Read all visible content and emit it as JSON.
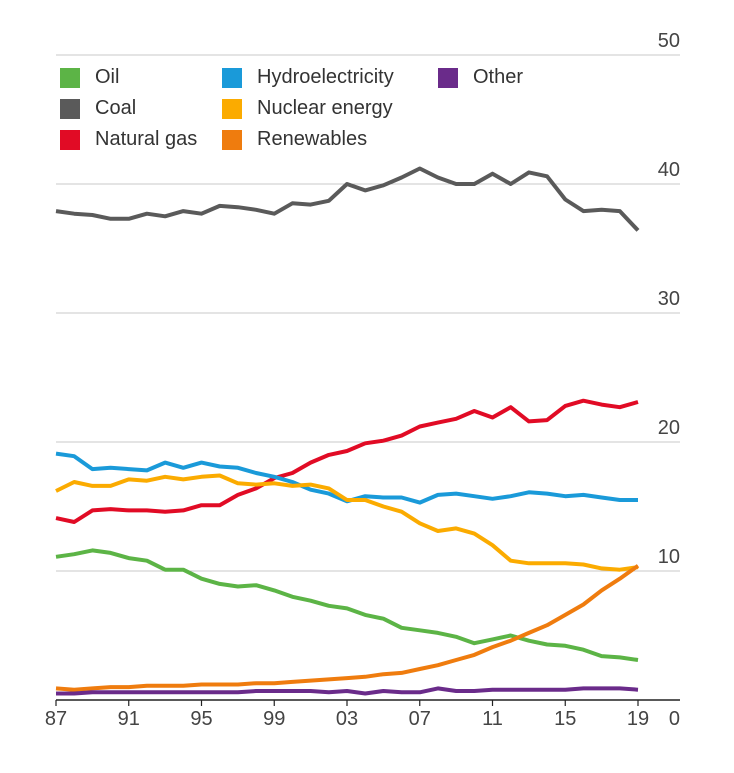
{
  "chart_data": {
    "type": "line",
    "title": "",
    "xlabel": "",
    "ylabel": "",
    "ylim": [
      0,
      50
    ],
    "y_ticks": [
      "0",
      "10",
      "20",
      "30",
      "40",
      "50"
    ],
    "x_ticks": [
      "87",
      "91",
      "95",
      "99",
      "03",
      "07",
      "11",
      "15",
      "19"
    ],
    "grid": "horizontal",
    "legend_position": "top-left",
    "x": [
      1987,
      1988,
      1989,
      1990,
      1991,
      1992,
      1993,
      1994,
      1995,
      1996,
      1997,
      1998,
      1999,
      2000,
      2001,
      2002,
      2003,
      2004,
      2005,
      2006,
      2007,
      2008,
      2009,
      2010,
      2011,
      2012,
      2013,
      2014,
      2015,
      2016,
      2017,
      2018,
      2019
    ],
    "series": [
      {
        "name": "Oil",
        "color": "#5cb446",
        "values": [
          11.1,
          11.3,
          11.6,
          11.4,
          11.0,
          10.8,
          10.1,
          10.1,
          9.4,
          9.0,
          8.8,
          8.9,
          8.5,
          8.0,
          7.7,
          7.3,
          7.1,
          6.6,
          6.3,
          5.6,
          5.4,
          5.2,
          4.9,
          4.4,
          4.7,
          5.0,
          4.6,
          4.3,
          4.2,
          3.9,
          3.4,
          3.3,
          3.1
        ]
      },
      {
        "name": "Coal",
        "color": "#5a5a5a",
        "values": [
          37.9,
          37.7,
          37.6,
          37.3,
          37.3,
          37.7,
          37.5,
          37.9,
          37.7,
          38.3,
          38.2,
          38.0,
          37.7,
          38.5,
          38.4,
          38.7,
          40.0,
          39.5,
          39.9,
          40.5,
          41.2,
          40.5,
          40.0,
          40.0,
          40.8,
          40.0,
          40.9,
          40.6,
          38.8,
          37.9,
          38.0,
          37.9,
          36.4
        ]
      },
      {
        "name": "Natural gas",
        "color": "#e10b25",
        "values": [
          14.1,
          13.8,
          14.7,
          14.8,
          14.7,
          14.7,
          14.6,
          14.7,
          15.1,
          15.1,
          15.9,
          16.4,
          17.2,
          17.6,
          18.4,
          19.0,
          19.3,
          19.9,
          20.1,
          20.5,
          21.2,
          21.5,
          21.8,
          22.4,
          21.9,
          22.7,
          21.6,
          21.7,
          22.8,
          23.2,
          22.9,
          22.7,
          23.1
        ]
      },
      {
        "name": "Hydroelectricity",
        "color": "#1a9ad9",
        "values": [
          19.1,
          18.9,
          17.9,
          18.0,
          17.9,
          17.8,
          18.4,
          18.0,
          18.4,
          18.1,
          18.0,
          17.6,
          17.3,
          16.9,
          16.3,
          16.0,
          15.4,
          15.8,
          15.7,
          15.7,
          15.3,
          15.9,
          16.0,
          15.8,
          15.6,
          15.8,
          16.1,
          16.0,
          15.8,
          15.9,
          15.7,
          15.5,
          15.5
        ]
      },
      {
        "name": "Nuclear energy",
        "color": "#fbab00",
        "values": [
          16.2,
          16.9,
          16.6,
          16.6,
          17.1,
          17.0,
          17.3,
          17.1,
          17.3,
          17.4,
          16.8,
          16.7,
          16.8,
          16.6,
          16.7,
          16.4,
          15.5,
          15.5,
          15.0,
          14.6,
          13.7,
          13.1,
          13.3,
          12.9,
          12.0,
          10.8,
          10.6,
          10.6,
          10.6,
          10.5,
          10.2,
          10.1,
          10.3
        ]
      },
      {
        "name": "Renewables",
        "color": "#ef7c0e",
        "values": [
          0.9,
          0.8,
          0.9,
          1.0,
          1.0,
          1.1,
          1.1,
          1.1,
          1.2,
          1.2,
          1.2,
          1.3,
          1.3,
          1.4,
          1.5,
          1.6,
          1.7,
          1.8,
          2.0,
          2.1,
          2.4,
          2.7,
          3.1,
          3.5,
          4.1,
          4.6,
          5.2,
          5.8,
          6.6,
          7.4,
          8.5,
          9.4,
          10.4
        ]
      },
      {
        "name": "Other",
        "color": "#6a2b8a",
        "values": [
          0.5,
          0.5,
          0.6,
          0.6,
          0.6,
          0.6,
          0.6,
          0.6,
          0.6,
          0.6,
          0.6,
          0.7,
          0.7,
          0.7,
          0.7,
          0.6,
          0.7,
          0.5,
          0.7,
          0.6,
          0.6,
          0.9,
          0.7,
          0.7,
          0.8,
          0.8,
          0.8,
          0.8,
          0.8,
          0.9,
          0.9,
          0.9,
          0.8
        ]
      }
    ]
  }
}
